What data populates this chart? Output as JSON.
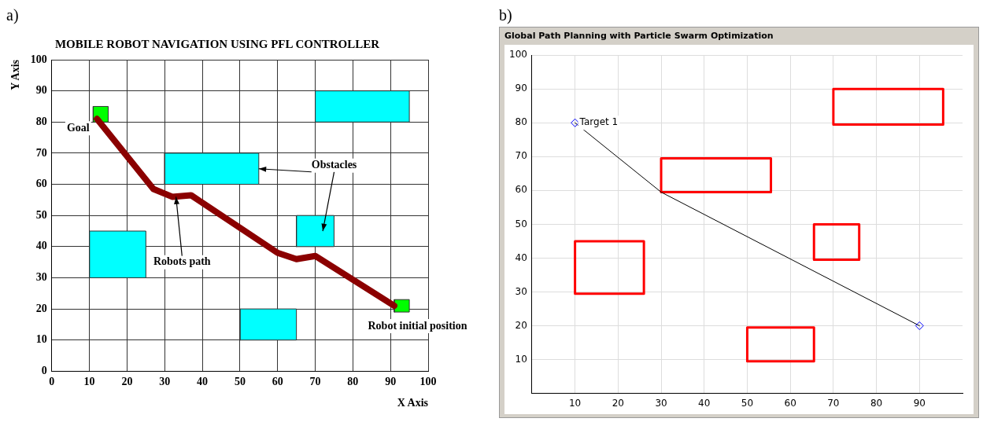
{
  "chart_data": [
    {
      "type": "line",
      "title": "MOBILE ROBOT NAVIGATION USING PFL CONTROLLER",
      "xlabel": "X Axis",
      "ylabel": "Y Axis",
      "xlim": [
        0,
        100
      ],
      "ylim": [
        0,
        100
      ],
      "xticks": [
        0,
        10,
        20,
        30,
        40,
        50,
        60,
        70,
        80,
        90,
        100
      ],
      "yticks": [
        0,
        10,
        20,
        30,
        40,
        50,
        60,
        70,
        80,
        90,
        100
      ],
      "grid": true,
      "legend": false,
      "annotations": [
        "Goal",
        {
          "text": "Obstacles",
          "x": 55,
          "y": 65
        },
        {
          "text": "Robots path",
          "x": 33,
          "y": 56
        },
        "Robot initial position",
        "a)"
      ],
      "series": [
        {
          "type": "area",
          "color": "#00ffff",
          "x": [
            70,
            95,
            95,
            70,
            70
          ],
          "values": [
            80,
            80,
            90,
            90,
            80
          ]
        },
        {
          "type": "area",
          "color": "#00ffff",
          "x": [
            30,
            55,
            55,
            30,
            30
          ],
          "values": [
            60,
            60,
            70,
            70,
            60
          ]
        },
        {
          "type": "area",
          "color": "#00ffff",
          "x": [
            65,
            75,
            75,
            65,
            65
          ],
          "values": [
            40,
            40,
            50,
            50,
            40
          ]
        },
        {
          "type": "area",
          "color": "#00ffff",
          "x": [
            10,
            25,
            25,
            10,
            10
          ],
          "values": [
            30,
            30,
            45,
            45,
            30
          ]
        },
        {
          "type": "area",
          "color": "#00ffff",
          "x": [
            50,
            65,
            65,
            50,
            50
          ],
          "values": [
            10,
            10,
            20,
            20,
            10
          ]
        },
        {
          "type": "area",
          "color": "#00ff00",
          "x": [
            11,
            15,
            15,
            11,
            11
          ],
          "values": [
            80,
            80,
            85,
            85,
            80
          ]
        },
        {
          "type": "area",
          "color": "#00ff00",
          "x": [
            91,
            95,
            95,
            91,
            91
          ],
          "values": [
            19,
            19,
            23,
            23,
            19
          ]
        },
        {
          "type": "line",
          "color": "#8b0000",
          "x": [
            91,
            70,
            65,
            60,
            37,
            32,
            27,
            12
          ],
          "values": [
            21,
            37,
            36,
            38,
            56.5,
            56,
            58.5,
            81
          ]
        }
      ]
    },
    {
      "type": "line",
      "title": "Global Path Planning with Particle Swarm Optimization",
      "xlim": [
        0,
        100
      ],
      "ylim": [
        0,
        100
      ],
      "xticks": [
        10,
        20,
        30,
        40,
        50,
        60,
        70,
        80,
        90
      ],
      "yticks": [
        10,
        20,
        30,
        40,
        50,
        60,
        70,
        80,
        90,
        100
      ],
      "grid": true,
      "legend": false,
      "annotations": [
        {
          "text": "Target 1",
          "x": 10,
          "y": 80
        },
        "b)"
      ],
      "series": [
        {
          "type": "line",
          "color": "#ff0000",
          "x": [
            10,
            10,
            26,
            26,
            null,
            10,
            26
          ],
          "values": [
            29.5,
            45,
            45,
            29.5,
            null,
            29.5,
            29.5
          ]
        },
        {
          "type": "line",
          "color": "#ff0000",
          "x": [
            30,
            30,
            55.5,
            55.5,
            null,
            30,
            55.5
          ],
          "values": [
            59.5,
            69.5,
            69.5,
            59.5,
            null,
            59.5,
            59.5
          ]
        },
        {
          "type": "line",
          "color": "#ff0000",
          "x": [
            65.5,
            65.5,
            76,
            76,
            null,
            65.5,
            76
          ],
          "values": [
            39.5,
            50,
            50,
            39.5,
            null,
            39.5,
            39.5
          ]
        },
        {
          "type": "line",
          "color": "#ff0000",
          "x": [
            70,
            70,
            95.5,
            95.5,
            null,
            70,
            95.5
          ],
          "values": [
            79.5,
            90,
            90,
            79.5,
            null,
            79.5,
            79.5
          ]
        },
        {
          "type": "line",
          "color": "#ff0000",
          "x": [
            50,
            50,
            65.5,
            65.5,
            null,
            50,
            65.5
          ],
          "values": [
            9.5,
            19.5,
            19.5,
            9.5,
            null,
            9.5,
            9.5
          ]
        },
        {
          "type": "line",
          "color": "#000000",
          "x": [
            10,
            30,
            90
          ],
          "values": [
            80,
            59.5,
            20
          ]
        },
        {
          "type": "scatter",
          "color": "#0000ff",
          "marker": "diamond",
          "x": [
            10,
            90
          ],
          "values": [
            80,
            20
          ]
        }
      ]
    }
  ]
}
